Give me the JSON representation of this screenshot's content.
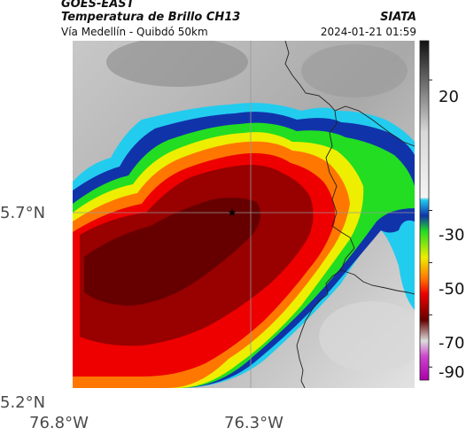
{
  "header": {
    "satellite": "GOES-EAST",
    "product": "Temperatura de Brillo CH13",
    "region": "Vía Medellín - Quibdó 50km",
    "source": "SIATA",
    "datetime": "2024-01-21 01:59"
  },
  "axes": {
    "lat_labels": [
      "5.7°N",
      "5.2°N"
    ],
    "lon_labels": [
      "76.8°W",
      "76.3°W"
    ]
  },
  "colorbar": {
    "ticks": [
      "20",
      "-30",
      "-50",
      "-70",
      "-90"
    ],
    "tick_values": [
      20,
      -30,
      -50,
      -70,
      -90
    ],
    "range": [
      -95,
      35
    ],
    "stops": [
      {
        "v": 35,
        "c": "#111111"
      },
      {
        "v": 0,
        "c": "#d8d8d8"
      },
      {
        "v": -25,
        "c": "#f4f4f4"
      },
      {
        "v": -26,
        "c": "#22ccee"
      },
      {
        "v": -32,
        "c": "#1133aa"
      },
      {
        "v": -38,
        "c": "#22dd22"
      },
      {
        "v": -48,
        "c": "#eeee00"
      },
      {
        "v": -56,
        "c": "#ff7700"
      },
      {
        "v": -62,
        "c": "#ee0000"
      },
      {
        "v": -72,
        "c": "#660000"
      },
      {
        "v": -80,
        "c": "#dddddd"
      },
      {
        "v": -86,
        "c": "#cc44cc"
      },
      {
        "v": -95,
        "c": "#aa00aa"
      }
    ]
  },
  "markers": [
    {
      "name": "star",
      "symbol": "★"
    }
  ],
  "colors": {
    "crosshair": "#999999",
    "border": "#222222"
  }
}
